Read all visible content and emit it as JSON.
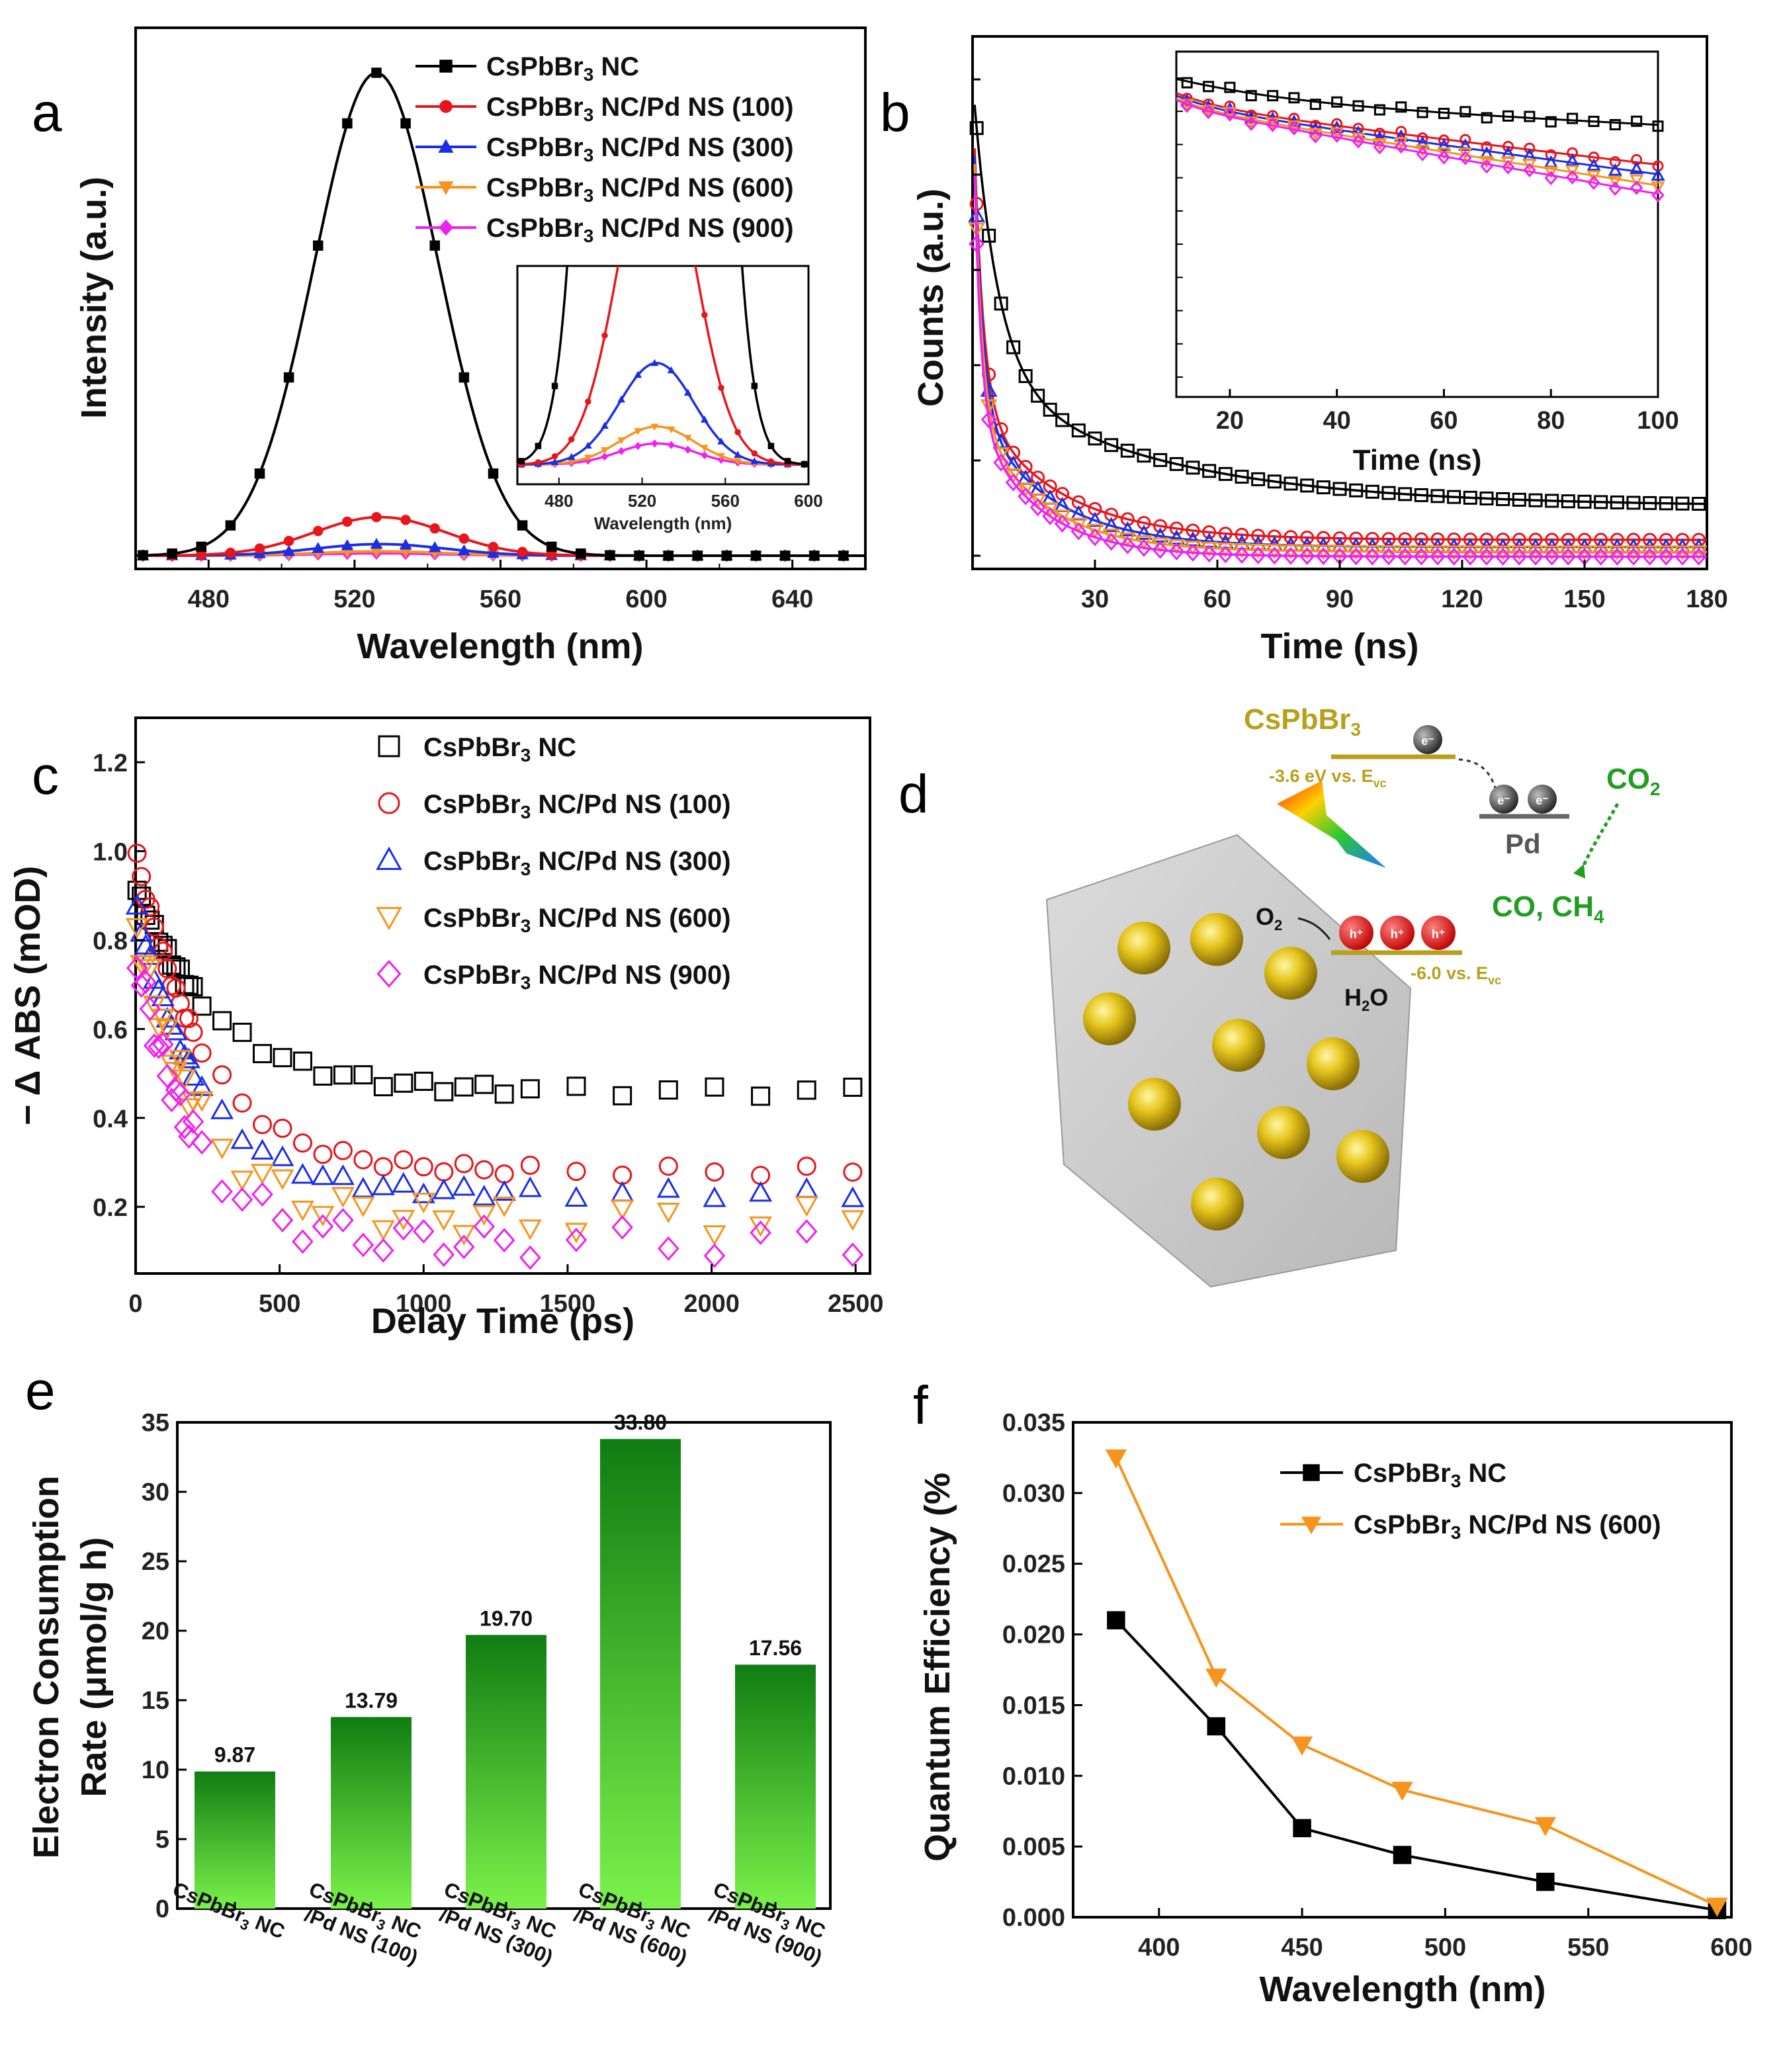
{
  "figure": {
    "panel_labels": [
      "a",
      "b",
      "c",
      "d",
      "e",
      "f"
    ],
    "schematic": {
      "material": "CsPbBr",
      "material_sub": "3",
      "cb_label": "-3.6 eV vs. E",
      "cb_sub": "vc",
      "vb_label": "-6.0 vs. E",
      "vb_sub": "vc",
      "metal": "Pd",
      "co2": "CO",
      "co2_sub": "2",
      "products": "CO, CH",
      "products_sub": "4",
      "o2": "O",
      "o2_sub": "2",
      "h2o": "H",
      "h2o_sub": "2",
      "h2o_end": "O",
      "electron": "e⁻",
      "hole": "h⁺"
    }
  },
  "chart_data": [
    {
      "panel": "a",
      "type": "line",
      "title": "",
      "xlabel": "Wavelength (nm)",
      "ylabel": "Intensity (a.u.)",
      "xlim": [
        460,
        660
      ],
      "ylim": [
        0,
        1.1
      ],
      "xticks": [
        480,
        520,
        560,
        600,
        640
      ],
      "series": [
        {
          "name": "CsPbBr3 NC",
          "label_main": "CsPbBr",
          "label_sub": "3",
          "label_rest": " NC",
          "color": "#000000",
          "marker": "square",
          "center": 526,
          "amp": 1.0,
          "width": 17
        },
        {
          "name": "CsPbBr3 NC/Pd NS (100)",
          "label_main": "CsPbBr",
          "label_sub": "3",
          "label_rest": " NC/Pd NS (100)",
          "color": "#e8151b",
          "marker": "circle",
          "center": 527,
          "amp": 0.08,
          "width": 18
        },
        {
          "name": "CsPbBr3 NC/Pd NS (300)",
          "label_main": "CsPbBr",
          "label_sub": "3",
          "label_rest": " NC/Pd NS (300)",
          "color": "#1a2ee8",
          "marker": "triangle-up",
          "center": 527,
          "amp": 0.024,
          "width": 18
        },
        {
          "name": "CsPbBr3 NC/Pd NS (600)",
          "label_main": "CsPbBr",
          "label_sub": "3",
          "label_rest": " NC/Pd NS (600)",
          "color": "#f7941d",
          "marker": "triangle-down",
          "center": 527,
          "amp": 0.009,
          "width": 18
        },
        {
          "name": "CsPbBr3 NC/Pd NS (900)",
          "label_main": "CsPbBr",
          "label_sub": "3",
          "label_rest": " NC/Pd NS (900)",
          "color": "#f020f0",
          "marker": "diamond",
          "center": 527,
          "amp": 0.005,
          "width": 18
        }
      ],
      "inset": {
        "xlabel": "Wavelength (nm)",
        "xlim": [
          460,
          600
        ],
        "xticks": [
          480,
          520,
          560,
          600
        ],
        "ylim": [
          0,
          0.045
        ]
      }
    },
    {
      "panel": "b",
      "type": "scatter",
      "title": "",
      "xlabel": "Time (ns)",
      "ylabel": "Counts (a.u.)",
      "xlim": [
        0,
        180
      ],
      "ylim": [
        0,
        1.05
      ],
      "xticks": [
        30,
        60,
        90,
        120,
        150,
        180
      ],
      "series": [
        {
          "name": "CsPbBr3 NC",
          "color": "#000000",
          "marker": "square-open",
          "plateau": 0.11,
          "tau_fast": 6,
          "tau_slow": 45
        },
        {
          "name": "CsPbBr3 NC/Pd NS (100)",
          "color": "#e8151b",
          "marker": "circle-open",
          "plateau": 0.04,
          "tau_fast": 2.2,
          "tau_slow": 20
        },
        {
          "name": "CsPbBr3 NC/Pd NS (300)",
          "color": "#1a2ee8",
          "marker": "triangle-open",
          "plateau": 0.025,
          "tau_fast": 2.0,
          "tau_slow": 18
        },
        {
          "name": "CsPbBr3 NC/Pd NS (600)",
          "color": "#f7941d",
          "marker": "triangle-down-open",
          "plateau": 0.015,
          "tau_fast": 1.8,
          "tau_slow": 16
        },
        {
          "name": "CsPbBr3 NC/Pd NS (900)",
          "color": "#f020f0",
          "marker": "diamond-open",
          "plateau": 0.005,
          "tau_fast": 1.6,
          "tau_slow": 15
        }
      ],
      "inset": {
        "xlabel": "Time (ns)",
        "xlim": [
          10,
          100
        ],
        "xticks": [
          20,
          40,
          60,
          80,
          100
        ],
        "scale": "log"
      }
    },
    {
      "panel": "c",
      "type": "scatter",
      "title": "",
      "xlabel": "Delay Time (ps)",
      "ylabel": "− Δ ABS (mOD)",
      "xlim": [
        0,
        2550
      ],
      "ylim": [
        0.05,
        1.3
      ],
      "xticks": [
        0,
        500,
        1000,
        1500,
        2000,
        2500
      ],
      "yticks": [
        0.2,
        0.4,
        0.6,
        0.8,
        1.0,
        1.2
      ],
      "series": [
        {
          "name": "CsPbBr3 NC",
          "label_main": "CsPbBr",
          "label_sub": "3",
          "label_rest": " NC",
          "color": "#000000",
          "marker": "square-open",
          "start": 0.92,
          "plateau": 0.46,
          "tau": 280
        },
        {
          "name": "CsPbBr3 NC/Pd NS (100)",
          "label_main": "CsPbBr",
          "label_sub": "3",
          "label_rest": " NC/Pd NS (100)",
          "color": "#e8151b",
          "marker": "circle-open",
          "start": 1.0,
          "plateau": 0.28,
          "tau": 240
        },
        {
          "name": "CsPbBr3 NC/Pd NS (300)",
          "label_main": "CsPbBr",
          "label_sub": "3",
          "label_rest": " NC/Pd NS (300)",
          "color": "#1a2ee8",
          "marker": "triangle-open",
          "start": 0.88,
          "plateau": 0.23,
          "tau": 230
        },
        {
          "name": "CsPbBr3 NC/Pd NS (600)",
          "label_main": "CsPbBr",
          "label_sub": "3",
          "label_rest": " NC/Pd NS (600)",
          "color": "#f7941d",
          "marker": "triangle-down-open",
          "start": 0.84,
          "plateau": 0.17,
          "tau": 220
        },
        {
          "name": "CsPbBr3 NC/Pd NS (900)",
          "label_main": "CsPbBr",
          "label_sub": "3",
          "label_rest": " NC/Pd NS (900)",
          "color": "#f020f0",
          "marker": "diamond-open",
          "start": 0.78,
          "plateau": 0.12,
          "tau": 200
        }
      ]
    },
    {
      "panel": "e",
      "type": "bar",
      "title": "",
      "xlabel": "",
      "ylabel_line1": "Electron Consumption",
      "ylabel_line2": "Rate (μmol/g h)",
      "ylim": [
        0,
        35
      ],
      "yticks": [
        0,
        5,
        10,
        15,
        20,
        25,
        30,
        35
      ],
      "categories": [
        {
          "line1_main": "CsPbBr",
          "line1_sub": "3",
          "line1_rest": " NC",
          "line2": ""
        },
        {
          "line1_main": "CsPbBr",
          "line1_sub": "3",
          "line1_rest": " NC",
          "line2": "/Pd NS (100)"
        },
        {
          "line1_main": "CsPbBr",
          "line1_sub": "3",
          "line1_rest": " NC",
          "line2": "/Pd NS (300)"
        },
        {
          "line1_main": "CsPbBr",
          "line1_sub": "3",
          "line1_rest": " NC",
          "line2": "/Pd NS (600)"
        },
        {
          "line1_main": "CsPbBr",
          "line1_sub": "3",
          "line1_rest": " NC",
          "line2": "/Pd NS (900)"
        }
      ],
      "values": [
        9.87,
        13.79,
        19.7,
        33.8,
        17.56
      ],
      "value_labels": [
        "9.87",
        "13.79",
        "19.70",
        "33.80",
        "17.56"
      ]
    },
    {
      "panel": "f",
      "type": "line",
      "title": "",
      "xlabel": "Wavelength (nm)",
      "ylabel": "Quantum Efficiency (%",
      "xlim": [
        370,
        600
      ],
      "ylim": [
        0,
        0.035
      ],
      "xticks": [
        400,
        450,
        500,
        550,
        600
      ],
      "yticks": [
        0.0,
        0.005,
        0.01,
        0.015,
        0.02,
        0.025,
        0.03,
        0.035
      ],
      "ytick_labels": [
        "0.000",
        "0.005",
        "0.010",
        "0.015",
        "0.020",
        "0.025",
        "0.030",
        "0.035"
      ],
      "x": [
        385,
        420,
        450,
        485,
        535,
        595
      ],
      "series": [
        {
          "name": "CsPbBr3 NC",
          "label_main": "CsPbBr",
          "label_sub": "3",
          "label_rest": " NC",
          "color": "#000000",
          "marker": "square",
          "values": [
            0.021,
            0.0135,
            0.0063,
            0.0044,
            0.0025,
            0.0005
          ]
        },
        {
          "name": "CsPbBr3 NC/Pd NS (600)",
          "label_main": "CsPbBr",
          "label_sub": "3",
          "label_rest": " NC/Pd NS (600)",
          "color": "#f7941d",
          "marker": "triangle-down",
          "values": [
            0.0325,
            0.017,
            0.0122,
            0.009,
            0.0065,
            0.0008
          ]
        }
      ]
    }
  ]
}
